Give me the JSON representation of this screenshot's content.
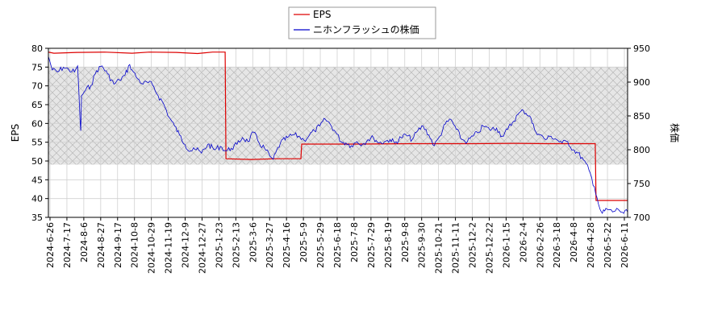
{
  "chart_data": {
    "type": "line",
    "title": "",
    "xlabel": "",
    "ylabel_left": "EPS",
    "ylabel_right": "株価",
    "y_left_lim": [
      35,
      80
    ],
    "y_left_ticks": [
      35,
      40,
      45,
      50,
      55,
      60,
      65,
      70,
      75,
      80
    ],
    "y_right_lim": [
      700,
      950
    ],
    "y_right_ticks": [
      700,
      750,
      800,
      850,
      900,
      950
    ],
    "x_range": [
      "2024-06-26",
      "2026-06-30"
    ],
    "x_tick_labels": [
      "2024-6-26",
      "2024-7-17",
      "2024-8-6",
      "2024-8-27",
      "2024-9-17",
      "2024-10-8",
      "2024-10-29",
      "2024-11-19",
      "2024-12-9",
      "2024-12-27",
      "2025-1-23",
      "2025-2-13",
      "2025-3-6",
      "2025-3-27",
      "2025-4-16",
      "2025-5-9",
      "2025-5-29",
      "2025-6-18",
      "2025-7-8",
      "2025-7-29",
      "2025-8-19",
      "2025-9-8",
      "2025-9-30",
      "2025-10-21",
      "2025-11-11",
      "2025-12-2",
      "2025-12-22",
      "2026-1-15",
      "2026-2-4",
      "2026-2-26",
      "2026-3-18",
      "2026-4-8",
      "2026-4-28",
      "2026-5-22",
      "2026-6-11"
    ],
    "grid": true,
    "hatched_band_right_axis": [
      778,
      922
    ],
    "legend_position": "top-center",
    "series": [
      {
        "name": "EPS",
        "axis": "left",
        "color": "#dd0000",
        "step": true,
        "points": [
          [
            "2024-06-26",
            79.0
          ],
          [
            "2024-07-03",
            78.7
          ],
          [
            "2024-08-01",
            78.9
          ],
          [
            "2024-09-05",
            79.0
          ],
          [
            "2024-10-10",
            78.7
          ],
          [
            "2024-11-01",
            79.0
          ],
          [
            "2024-12-05",
            78.9
          ],
          [
            "2025-01-01",
            78.6
          ],
          [
            "2025-01-20",
            79.0
          ],
          [
            "2025-02-05",
            79.0
          ],
          [
            "2025-02-06",
            50.6
          ],
          [
            "2025-03-10",
            50.4
          ],
          [
            "2025-04-10",
            50.6
          ],
          [
            "2025-05-12",
            50.6
          ],
          [
            "2025-05-13",
            54.5
          ],
          [
            "2025-07-20",
            54.5
          ],
          [
            "2025-10-01",
            54.6
          ],
          [
            "2025-12-15",
            54.6
          ],
          [
            "2026-02-10",
            54.7
          ],
          [
            "2026-03-20",
            54.6
          ],
          [
            "2026-05-20",
            54.6
          ],
          [
            "2026-05-21",
            39.5
          ],
          [
            "2026-06-30",
            39.5
          ]
        ]
      },
      {
        "name": "ニホンフラッシュの株価",
        "axis": "right",
        "color": "#0000cc",
        "step": false,
        "points": [
          [
            "2024-06-26",
            938
          ],
          [
            "2024-07-01",
            918
          ],
          [
            "2024-07-08",
            915
          ],
          [
            "2024-07-15",
            922
          ],
          [
            "2024-07-22",
            918
          ],
          [
            "2024-07-29",
            915
          ],
          [
            "2024-08-02",
            924
          ],
          [
            "2024-08-05",
            848
          ],
          [
            "2024-08-06",
            828
          ],
          [
            "2024-08-07",
            880
          ],
          [
            "2024-08-12",
            888
          ],
          [
            "2024-08-19",
            895
          ],
          [
            "2024-08-26",
            917
          ],
          [
            "2024-09-02",
            924
          ],
          [
            "2024-09-09",
            912
          ],
          [
            "2024-09-17",
            897
          ],
          [
            "2024-09-24",
            903
          ],
          [
            "2024-10-01",
            910
          ],
          [
            "2024-10-07",
            926
          ],
          [
            "2024-10-10",
            918
          ],
          [
            "2024-10-17",
            905
          ],
          [
            "2024-10-24",
            897
          ],
          [
            "2024-10-29",
            900
          ],
          [
            "2024-11-05",
            896
          ],
          [
            "2024-11-12",
            880
          ],
          [
            "2024-11-19",
            868
          ],
          [
            "2024-11-26",
            848
          ],
          [
            "2024-12-03",
            835
          ],
          [
            "2024-12-09",
            822
          ],
          [
            "2024-12-16",
            808
          ],
          [
            "2024-12-23",
            798
          ],
          [
            "2024-12-27",
            803
          ],
          [
            "2025-01-06",
            795
          ],
          [
            "2025-01-14",
            808
          ],
          [
            "2025-01-23",
            800
          ],
          [
            "2025-01-30",
            805
          ],
          [
            "2025-02-06",
            798
          ],
          [
            "2025-02-13",
            802
          ],
          [
            "2025-02-20",
            808
          ],
          [
            "2025-02-27",
            818
          ],
          [
            "2025-03-06",
            812
          ],
          [
            "2025-03-13",
            826
          ],
          [
            "2025-03-20",
            810
          ],
          [
            "2025-03-27",
            802
          ],
          [
            "2025-04-03",
            790
          ],
          [
            "2025-04-07",
            786
          ],
          [
            "2025-04-16",
            810
          ],
          [
            "2025-04-25",
            818
          ],
          [
            "2025-05-02",
            822
          ],
          [
            "2025-05-09",
            820
          ],
          [
            "2025-05-16",
            814
          ],
          [
            "2025-05-23",
            822
          ],
          [
            "2025-05-29",
            828
          ],
          [
            "2025-06-05",
            835
          ],
          [
            "2025-06-12",
            845
          ],
          [
            "2025-06-18",
            838
          ],
          [
            "2025-06-25",
            826
          ],
          [
            "2025-07-02",
            812
          ],
          [
            "2025-07-08",
            810
          ],
          [
            "2025-07-15",
            806
          ],
          [
            "2025-07-22",
            812
          ],
          [
            "2025-07-29",
            808
          ],
          [
            "2025-08-05",
            815
          ],
          [
            "2025-08-12",
            818
          ],
          [
            "2025-08-19",
            810
          ],
          [
            "2025-08-26",
            812
          ],
          [
            "2025-09-02",
            815
          ],
          [
            "2025-09-08",
            810
          ],
          [
            "2025-09-16",
            818
          ],
          [
            "2025-09-22",
            822
          ],
          [
            "2025-09-30",
            815
          ],
          [
            "2025-10-07",
            828
          ],
          [
            "2025-10-14",
            835
          ],
          [
            "2025-10-21",
            822
          ],
          [
            "2025-10-28",
            806
          ],
          [
            "2025-11-04",
            820
          ],
          [
            "2025-11-11",
            838
          ],
          [
            "2025-11-18",
            845
          ],
          [
            "2025-11-25",
            830
          ],
          [
            "2025-12-02",
            815
          ],
          [
            "2025-12-09",
            812
          ],
          [
            "2025-12-16",
            820
          ],
          [
            "2025-12-22",
            825
          ],
          [
            "2025-12-29",
            835
          ],
          [
            "2026-01-06",
            830
          ],
          [
            "2026-01-15",
            832
          ],
          [
            "2026-01-22",
            820
          ],
          [
            "2026-01-29",
            830
          ],
          [
            "2026-02-04",
            840
          ],
          [
            "2026-02-11",
            852
          ],
          [
            "2026-02-18",
            858
          ],
          [
            "2026-02-26",
            850
          ],
          [
            "2026-03-04",
            830
          ],
          [
            "2026-03-11",
            822
          ],
          [
            "2026-03-18",
            815
          ],
          [
            "2026-03-25",
            820
          ],
          [
            "2026-04-01",
            815
          ],
          [
            "2026-04-08",
            810
          ],
          [
            "2026-04-15",
            812
          ],
          [
            "2026-04-22",
            800
          ],
          [
            "2026-04-28",
            795
          ],
          [
            "2026-05-05",
            785
          ],
          [
            "2026-05-12",
            770
          ],
          [
            "2026-05-19",
            745
          ],
          [
            "2026-05-22",
            730
          ],
          [
            "2026-05-26",
            712
          ],
          [
            "2026-05-29",
            706
          ],
          [
            "2026-06-04",
            712
          ],
          [
            "2026-06-11",
            708
          ],
          [
            "2026-06-18",
            712
          ],
          [
            "2026-06-25",
            706
          ],
          [
            "2026-06-30",
            708
          ]
        ]
      }
    ]
  }
}
